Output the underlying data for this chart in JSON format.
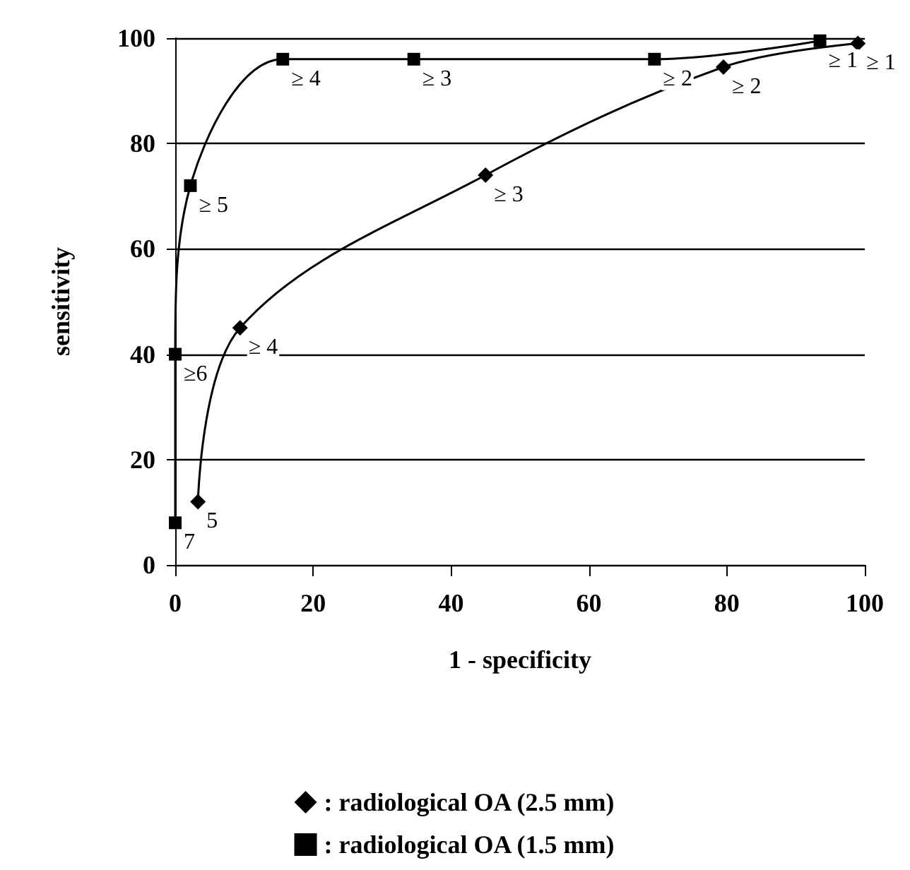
{
  "chart_data": {
    "type": "line",
    "xlabel": "1 - specificity",
    "ylabel": "sensitivity",
    "xlim": [
      0,
      100
    ],
    "xticks": [
      0,
      20,
      40,
      60,
      80,
      100
    ],
    "ylim": [
      0,
      100
    ],
    "yticks": [
      0,
      20,
      40,
      60,
      80,
      100
    ],
    "grid": "y",
    "legend": "bottom",
    "line_style": "solid",
    "series": [
      {
        "name": ": radiological OA (2.5 mm)",
        "color": "#000000",
        "marker": "diamond",
        "x": [
          3.3,
          9.4,
          45,
          79.5,
          99
        ],
        "values": [
          12,
          45,
          74,
          94.5,
          99
        ]
      },
      {
        "name": ": radiological OA (1.5 mm)",
        "color": "#000000",
        "marker": "square",
        "x": [
          0,
          0,
          2.2,
          15.6,
          34.6,
          69.5,
          93.5
        ],
        "values": [
          8,
          40,
          72,
          96,
          96,
          96,
          99.5
        ]
      }
    ],
    "annotations": [
      {
        "text": "5",
        "x": 3.3,
        "y": 12
      },
      {
        "text": "≥ 4",
        "x": 9.4,
        "y": 45
      },
      {
        "text": "≥ 3",
        "x": 45,
        "y": 74
      },
      {
        "text": "≥ 2",
        "x": 79.5,
        "y": 94.5
      },
      {
        "text": "≥ 1",
        "x": 99,
        "y": 99
      },
      {
        "text": "7",
        "x": 0,
        "y": 8
      },
      {
        "text": "≥6",
        "x": 0,
        "y": 40
      },
      {
        "text": "≥ 5",
        "x": 2.2,
        "y": 72
      },
      {
        "text": "≥ 4",
        "x": 15.6,
        "y": 96
      },
      {
        "text": "≥ 3",
        "x": 34.6,
        "y": 96
      },
      {
        "text": "≥ 2",
        "x": 69.5,
        "y": 96
      },
      {
        "text": "≥ 1",
        "x": 93.5,
        "y": 99.5
      }
    ]
  }
}
